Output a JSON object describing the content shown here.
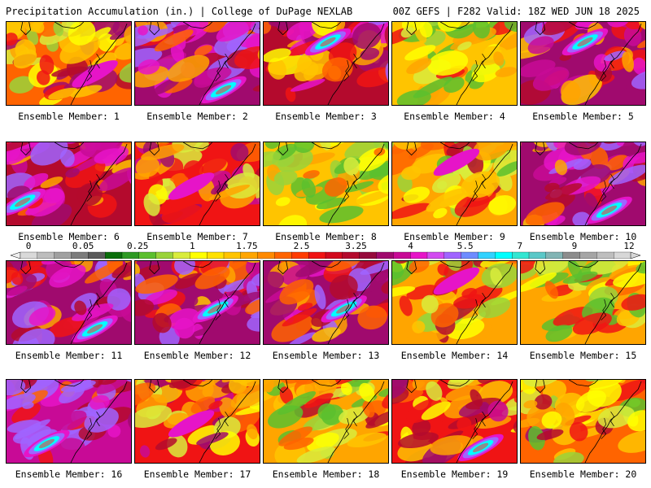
{
  "header": {
    "left_title": "Precipitation Accumulation (in.) | College of DuPage NEXLAB",
    "right_title": "00Z GEFS | F282 Valid: 18Z WED JUN 18 2025"
  },
  "members": [
    {
      "label": "Ensemble Member: 1",
      "wetness": 0.45,
      "heavy_core": "center-right"
    },
    {
      "label": "Ensemble Member: 2",
      "wetness": 0.75,
      "heavy_core": "southeast-band"
    },
    {
      "label": "Ensemble Member: 3",
      "wetness": 0.6,
      "heavy_core": "north"
    },
    {
      "label": "Ensemble Member: 4",
      "wetness": 0.25,
      "heavy_core": "none"
    },
    {
      "label": "Ensemble Member: 5",
      "wetness": 0.7,
      "heavy_core": "north"
    },
    {
      "label": "Ensemble Member: 6",
      "wetness": 0.65,
      "heavy_core": "southwest"
    },
    {
      "label": "Ensemble Member: 7",
      "wetness": 0.5,
      "heavy_core": "center"
    },
    {
      "label": "Ensemble Member: 8",
      "wetness": 0.2,
      "heavy_core": "none"
    },
    {
      "label": "Ensemble Member: 9",
      "wetness": 0.35,
      "heavy_core": "north"
    },
    {
      "label": "Ensemble Member: 10",
      "wetness": 0.7,
      "heavy_core": "southeast-band"
    },
    {
      "label": "Ensemble Member: 11",
      "wetness": 0.75,
      "heavy_core": "southeast-band"
    },
    {
      "label": "Ensemble Member: 12",
      "wetness": 0.7,
      "heavy_core": "coast"
    },
    {
      "label": "Ensemble Member: 13",
      "wetness": 0.7,
      "heavy_core": "coast"
    },
    {
      "label": "Ensemble Member: 14",
      "wetness": 0.35,
      "heavy_core": "north"
    },
    {
      "label": "Ensemble Member: 15",
      "wetness": 0.3,
      "heavy_core": "none"
    },
    {
      "label": "Ensemble Member: 16",
      "wetness": 0.85,
      "heavy_core": "southwest-band"
    },
    {
      "label": "Ensemble Member: 17",
      "wetness": 0.5,
      "heavy_core": "center"
    },
    {
      "label": "Ensemble Member: 18",
      "wetness": 0.3,
      "heavy_core": "none"
    },
    {
      "label": "Ensemble Member: 19",
      "wetness": 0.55,
      "heavy_core": "southeast-band"
    },
    {
      "label": "Ensemble Member: 20",
      "wetness": 0.4,
      "heavy_core": "none"
    }
  ],
  "colorbar": {
    "labels": [
      "0",
      "0.05",
      "0.25",
      "1",
      "1.75",
      "2.5",
      "3.25",
      "4",
      "5.5",
      "7",
      "9",
      "12"
    ],
    "colors": [
      "#d9d9d9",
      "#bdbdbd",
      "#a0a0a0",
      "#7c7c7c",
      "#5a5a5a",
      "#0a6e0a",
      "#2e9a23",
      "#5cbf2e",
      "#9ad33a",
      "#d9ec3c",
      "#ffff00",
      "#ffe100",
      "#ffc400",
      "#ffa500",
      "#ff8a00",
      "#ff6400",
      "#ff3c00",
      "#f01414",
      "#d20a1e",
      "#b40a2d",
      "#960a3c",
      "#a00a6e",
      "#c80a96",
      "#e614c8",
      "#d24bf0",
      "#a064ff",
      "#6e8cff",
      "#32d2ff",
      "#00ffff",
      "#32e6d2",
      "#5ac8c8",
      "#82b4b4",
      "#8c8c8c",
      "#a5a5a5",
      "#bebebe",
      "#d7d7d7"
    ]
  },
  "legend": {
    "units": "in.",
    "palette_low_to_high": [
      "#5cbf2e",
      "#9ad33a",
      "#d9ec3c",
      "#ffff00",
      "#ffc400",
      "#ffa500",
      "#ff6400",
      "#f01414",
      "#b40a2d",
      "#a00a6e",
      "#c80a96",
      "#e614c8",
      "#a064ff",
      "#32d2ff",
      "#00ffff",
      "#8c8c8c"
    ]
  }
}
